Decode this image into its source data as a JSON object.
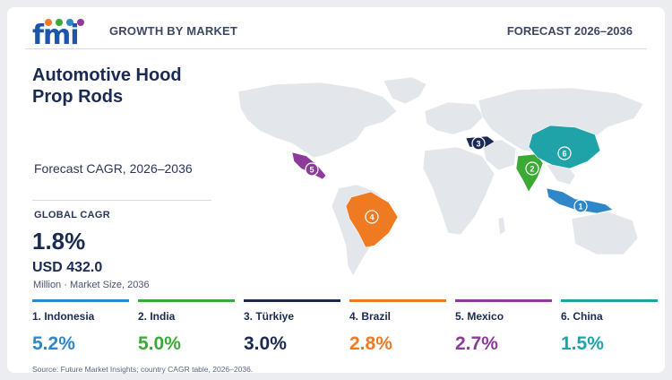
{
  "header": {
    "logo_text": "fmi",
    "title": "GROWTH BY MARKET",
    "forecast_range": "FORECAST 2026–2036"
  },
  "report": {
    "title": "Automotive Hood Prop Rods",
    "forecast_label": "Forecast CAGR, 2026–2036",
    "global_cagr_label": "GLOBAL CAGR",
    "global_cagr_value": "1.8%",
    "market_size_value": "USD 432.0",
    "market_size_note": "Million · Market Size, 2036"
  },
  "colors": {
    "indonesia": "#2f86c8",
    "india": "#3aaa35",
    "turkiye": "#1b2a55",
    "brazil": "#f07a22",
    "mexico": "#8e3a9c",
    "china": "#1fa3a8",
    "land": "#e3e6eb"
  },
  "countries": [
    {
      "rank": "1",
      "name": "1. Indonesia",
      "cagr": "5.2%",
      "color": "#2f86c8"
    },
    {
      "rank": "2",
      "name": "2. India",
      "cagr": "5.0%",
      "color": "#3aaa35"
    },
    {
      "rank": "3",
      "name": "3. Türkiye",
      "cagr": "3.0%",
      "color": "#1b2a55"
    },
    {
      "rank": "4",
      "name": "4. Brazil",
      "cagr": "2.8%",
      "color": "#f07a22"
    },
    {
      "rank": "5",
      "name": "5. Mexico",
      "cagr": "2.7%",
      "color": "#8e3a9c"
    },
    {
      "rank": "6",
      "name": "6. China",
      "cagr": "1.5%",
      "color": "#1fa3a8"
    }
  ],
  "source": "Source: Future Market Insights; country CAGR table, 2026–2036."
}
